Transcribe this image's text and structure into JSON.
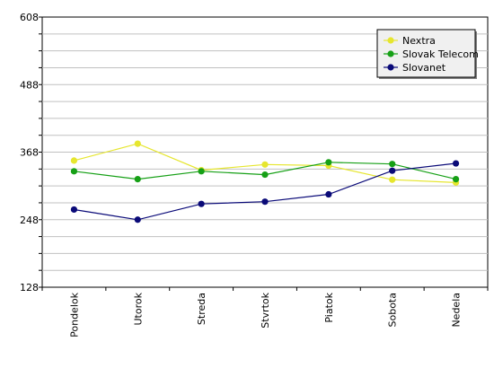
{
  "chart_data": {
    "type": "line",
    "title": "",
    "xlabel": "",
    "ylabel": "",
    "categories": [
      "Pondelok",
      "Utorok",
      "Streda",
      "Stvrtok",
      "Piatok",
      "Sobota",
      "Nedela"
    ],
    "ylim": [
      128,
      608
    ],
    "y_ticks_labeled": [
      128,
      248,
      368,
      488,
      608
    ],
    "grid": true,
    "legend_position": "top-right",
    "series": [
      {
        "name": "Nextra",
        "color": "#e6e62e",
        "values": [
          353,
          383,
          336,
          346,
          344,
          319,
          314
        ]
      },
      {
        "name": "Slovak Telecom",
        "color": "#16a016",
        "values": [
          334,
          320,
          334,
          328,
          350,
          347,
          320
        ]
      },
      {
        "name": "Slovanet",
        "color": "#0a0a78",
        "values": [
          266,
          248,
          276,
          280,
          293,
          335,
          348
        ]
      }
    ]
  }
}
